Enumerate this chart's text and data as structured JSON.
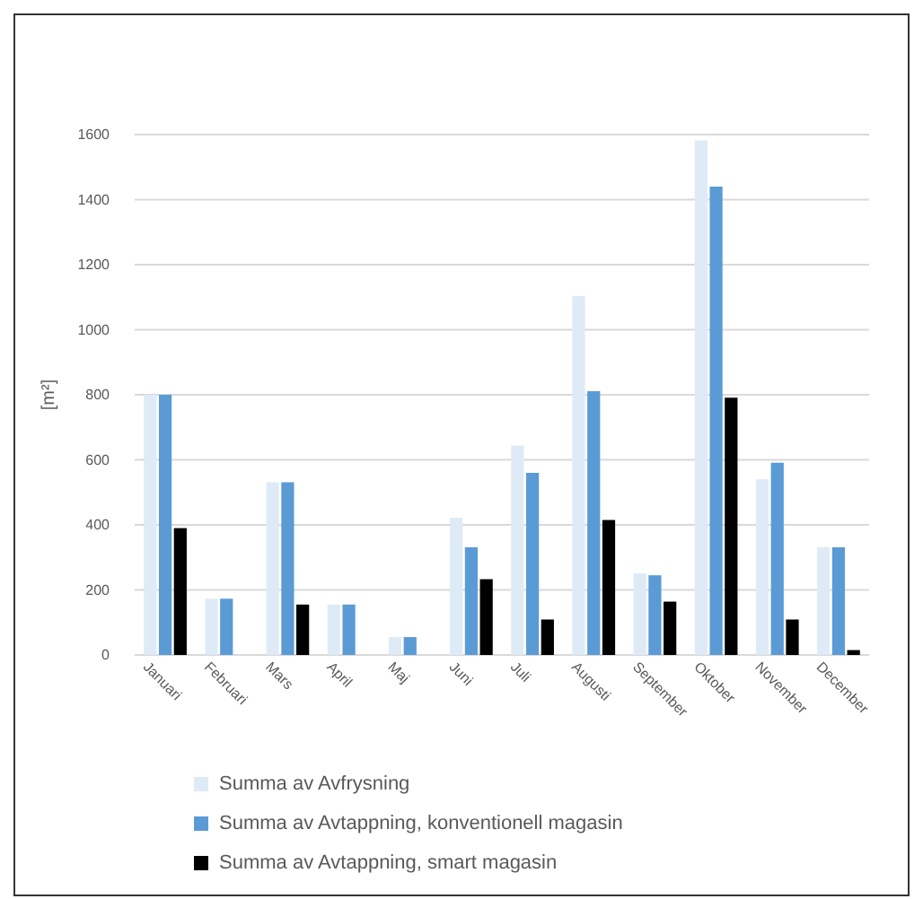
{
  "chart_data": {
    "type": "bar",
    "ylabel": "[m²]",
    "categories": [
      "Januari",
      "Februari",
      "Mars",
      "April",
      "Maj",
      "Juni",
      "Juli",
      "Augusti",
      "September",
      "Oktober",
      "November",
      "December"
    ],
    "series": [
      {
        "name": "Summa av Avfrysning",
        "color": "#deebf7",
        "values": [
          800,
          173,
          531,
          155,
          55,
          422,
          644,
          1104,
          251,
          1582,
          540,
          331
        ]
      },
      {
        "name": "Summa av Avtappning, konventionell magasin",
        "color": "#5b9bd5",
        "values": [
          800,
          173,
          531,
          155,
          55,
          331,
          560,
          811,
          245,
          1440,
          591,
          331
        ]
      },
      {
        "name": "Summa av Avtappning, smart magasin",
        "color": "#000000",
        "values": [
          390,
          null,
          155,
          null,
          null,
          233,
          109,
          415,
          164,
          791,
          109,
          15
        ]
      }
    ],
    "ylim": [
      0,
      1600
    ],
    "yticks": [
      0,
      200,
      400,
      600,
      800,
      1000,
      1200,
      1400,
      1600
    ],
    "grid": "y",
    "legend": "bottom"
  }
}
